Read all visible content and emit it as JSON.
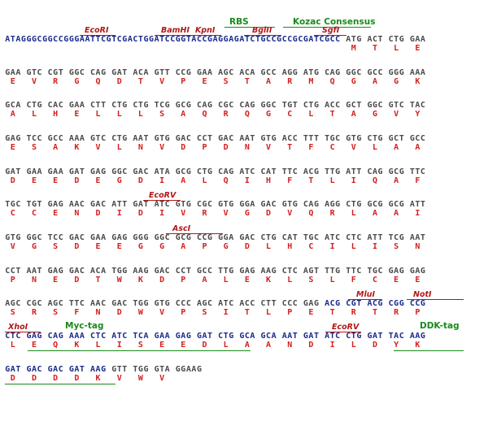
{
  "features": {
    "rbs": "RBS",
    "kozac": "Kozac Consensus",
    "ecori_1": "EcoRI",
    "bamhi": "BamHI",
    "kpni": "KpnI",
    "bglii": "BglII",
    "sgfi": "SgfI",
    "ecorv_1": "EcoRV",
    "asci": "AscI",
    "mlui": "MluI",
    "noti": "NotI",
    "xhoi": "XhoI",
    "myc": "Myc-tag",
    "ecorv_2": "EcoRV",
    "ddk": "DDK-tag"
  },
  "rows": [
    {
      "dna": "ATAGGGCGGCCGGGAATTCGTCGACTGGATCCGGTACCGAGGAGATCTGCCGCCGCGATCGCC ATG ACT CTG GAA",
      "aa": "                                                                 M   T   L   E "
    },
    {
      "dna": "GAA GTC CGT GGC CAG GAT ACA GTT CCG GAA AGC ACA GCC AGG ATG CAG GGC GCC GGG AAA",
      "aa": " E   V   R   G   Q   D   T   V   P   E   S   T   A   R   M   Q   G   A   G   K "
    },
    {
      "dna": "GCA CTG CAC GAA CTT CTG CTG TCG GCG CAG CGC CAG GGC TGT CTG ACC GCT GGC GTC TAC",
      "aa": " A   L   H   E   L   L   L   S   A   Q   R   Q   G   C   L   T   A   G   V   Y "
    },
    {
      "dna": "GAG TCC GCC AAA GTC CTG AAT GTG GAC CCT GAC AAT GTG ACC TTT TGC GTG CTG GCT GCC",
      "aa": " E   S   A   K   V   L   N   V   D   P   D   N   V   T   F   C   V   L   A   A "
    },
    {
      "dna": "GAT GAA GAA GAT GAG GGC GAC ATA GCG CTG CAG ATC CAT TTC ACG TTG ATT CAG GCG TTC",
      "aa": " D   E   E   D   E   G   D   I   A   L   Q   I   H   F   T   L   I   Q   A   F "
    },
    {
      "dna": "TGC TGT GAG AAC GAC ATT GAT ATC GTG CGC GTG GGA GAC GTG CAG AGG CTG GCG GCG ATT",
      "aa": " C   C   E   N   D   I   D   I   V   R   V   G   D   V   Q   R   L   A   A   I "
    },
    {
      "dna": "GTG GGC TCC GAC GAA GAG GGG GGC GCG CCG GGA GAC CTG CAT TGC ATC CTC ATT TCG AAT",
      "aa": " V   G   S   D   E   E   G   G   A   P   G   D   L   H   C   I   L   I   S   N "
    },
    {
      "dna": "CCT AAT GAG GAC ACA TGG AAG GAC CCT GCC TTG GAG AAG CTC AGT TTG TTC TGC GAG GAG",
      "aa": " P   N   E   D   T   W   K   D   P   A   L   E   K   L   S   L   F   C   E   E "
    },
    {
      "dna": "AGC CGC AGC TTC AAC GAC TGG GTG CCC AGC ATC ACC CTT CCC GAG ACG CGT ACG CGG CCG",
      "aa": " S   R   S   F   N   D   W   V   P   S   I   T   L   P   E   T   R   T   R   P "
    },
    {
      "dna": "CTC GAG CAG AAA CTC ATC TCA GAA GAG GAT CTG GCA GCA AAT GAT ATC CTG GAT TAC AAG",
      "aa": " L   E   Q   K   L   I   S   E   E   D   L   A   A   N   D   I   L   D   Y   K "
    },
    {
      "dna": "GAT GAC GAC GAT AAG GTT TGG GTA GGAAG",
      "aa": " D   D   D   D   K   V   W   V      "
    }
  ],
  "colors": {
    "vector": "#1a2a8a",
    "insert": "#4a4a4a",
    "aa": "#d42020",
    "enzyme": "#b01818",
    "tag": "#1a8a1a"
  }
}
